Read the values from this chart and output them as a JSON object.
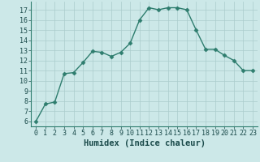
{
  "x": [
    0,
    1,
    2,
    3,
    4,
    5,
    6,
    7,
    8,
    9,
    10,
    11,
    12,
    13,
    14,
    15,
    16,
    17,
    18,
    19,
    20,
    21,
    22,
    23
  ],
  "y": [
    6,
    7.7,
    7.9,
    10.7,
    10.8,
    11.8,
    12.9,
    12.8,
    12.4,
    12.8,
    13.7,
    16.0,
    17.2,
    17.0,
    17.2,
    17.2,
    17.0,
    15.0,
    13.1,
    13.1,
    12.5,
    12.0,
    11.0,
    11.0
  ],
  "line_color": "#2e7d6e",
  "bg_color": "#cce8e8",
  "grid_color_major": "#aacccc",
  "grid_color_minor": "#c4e0e0",
  "xlabel": "Humidex (Indice chaleur)",
  "xlim": [
    -0.5,
    23.5
  ],
  "ylim": [
    5.5,
    17.8
  ],
  "xtick_labels": [
    "0",
    "1",
    "2",
    "3",
    "4",
    "5",
    "6",
    "7",
    "8",
    "9",
    "10",
    "11",
    "12",
    "13",
    "14",
    "15",
    "16",
    "17",
    "18",
    "19",
    "20",
    "21",
    "22",
    "23"
  ],
  "yticks": [
    6,
    7,
    8,
    9,
    10,
    11,
    12,
    13,
    14,
    15,
    16,
    17
  ],
  "marker_size": 2.5,
  "line_width": 1.0,
  "xlabel_fontsize": 7.5,
  "tick_fontsize": 6.0
}
